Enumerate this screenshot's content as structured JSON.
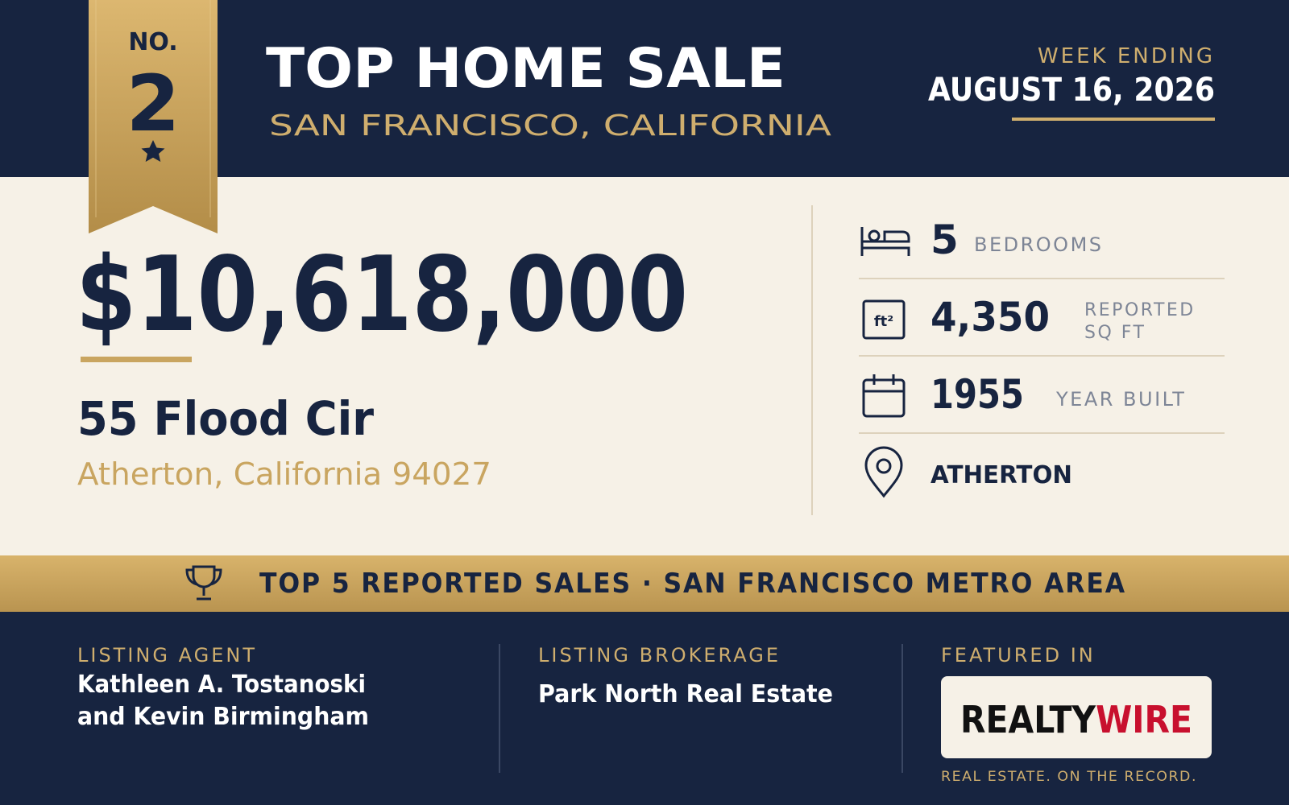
{
  "ribbon": {
    "prefix": "NO.",
    "rank": "2"
  },
  "header": {
    "title": "TOP HOME SALE",
    "subtitle": "SAN FRANCISCO, CALIFORNIA",
    "week_label": "WEEK ENDING",
    "week_date": "AUGUST 16, 2026"
  },
  "listing": {
    "price": "$10,618,000",
    "address": "55 Flood Cir",
    "city": "Atherton, California 94027"
  },
  "icons": {
    "area": "ft²"
  },
  "stats": [
    {
      "value": "5",
      "label_lines": [
        "BEDROOMS"
      ]
    },
    {
      "value": "4,350",
      "label_lines": [
        "REPORTED",
        "SQ FT"
      ]
    },
    {
      "value": "1955",
      "label_lines": [
        "YEAR BUILT"
      ]
    },
    {
      "value": "ATHERTON"
    }
  ],
  "banner": {
    "text": "TOP 5 REPORTED SALES · SAN FRANCISCO METRO AREA"
  },
  "footer": {
    "agent": {
      "label": "LISTING AGENT",
      "lines": [
        "Kathleen A. Tostanoski",
        "and Kevin Birmingham"
      ]
    },
    "brokerage": {
      "label": "LISTING BROKERAGE",
      "name": "Park North Real Estate"
    },
    "featured": {
      "label": "FEATURED IN",
      "logo": [
        "REALTY",
        "WIRE"
      ],
      "tagline": "REAL ESTATE. ON THE RECORD."
    }
  }
}
